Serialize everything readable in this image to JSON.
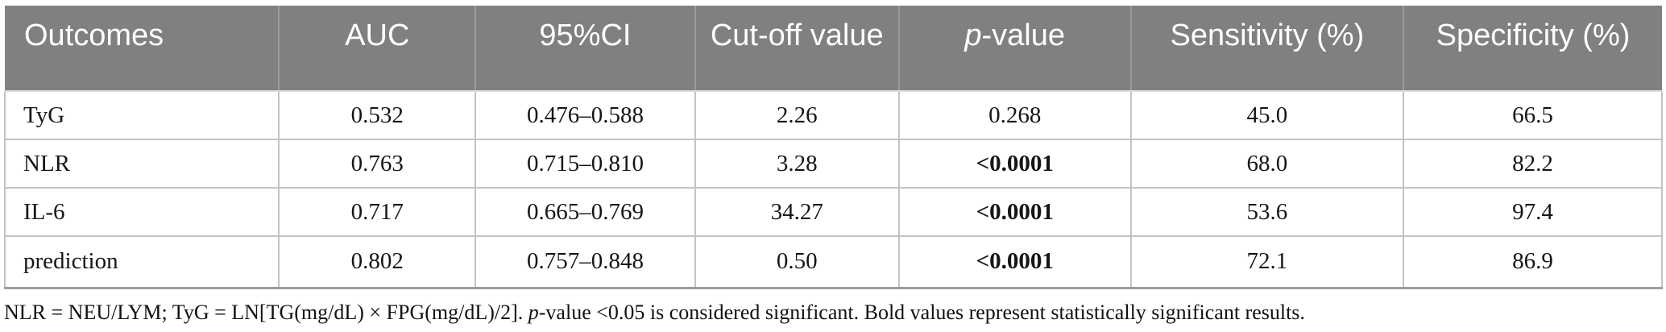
{
  "table": {
    "headers": {
      "outcomes": "Outcomes",
      "auc": "AUC",
      "ci": "95%CI",
      "cutoff": "Cut-off value",
      "p_italic": "p",
      "p_rest": "-value",
      "sensitivity": "Sensitivity (%)",
      "specificity": "Specificity (%)"
    },
    "rows": [
      {
        "outcome": "TyG",
        "auc": "0.532",
        "ci": "0.476–0.588",
        "cutoff": "2.26",
        "p": "0.268",
        "p_bold": false,
        "sensitivity": "45.0",
        "specificity": "66.5"
      },
      {
        "outcome": "NLR",
        "auc": "0.763",
        "ci": "0.715–0.810",
        "cutoff": "3.28",
        "p": "<0.0001",
        "p_bold": true,
        "sensitivity": "68.0",
        "specificity": "82.2"
      },
      {
        "outcome": "IL-6",
        "auc": "0.717",
        "ci": "0.665–0.769",
        "cutoff": "34.27",
        "p": "<0.0001",
        "p_bold": true,
        "sensitivity": "53.6",
        "specificity": "97.4"
      },
      {
        "outcome": "prediction",
        "auc": "0.802",
        "ci": "0.757–0.848",
        "cutoff": "0.50",
        "p": "<0.0001",
        "p_bold": true,
        "sensitivity": "72.1",
        "specificity": "86.9"
      }
    ]
  },
  "footnote": {
    "part1": "NLR = NEU/LYM; TyG = LN[TG(mg/dL) × FPG(mg/dL)/2]. ",
    "p_italic": "p",
    "part2": "-value <0.05 is considered significant. Bold values represent statistically significant results."
  },
  "colors": {
    "header_bg": "#808080",
    "header_text": "#ffffff",
    "body_text": "#151515",
    "grid_line": "#c3c3c3",
    "header_grid_line": "#9a9a9a",
    "bottom_border": "#9c9c9c"
  }
}
